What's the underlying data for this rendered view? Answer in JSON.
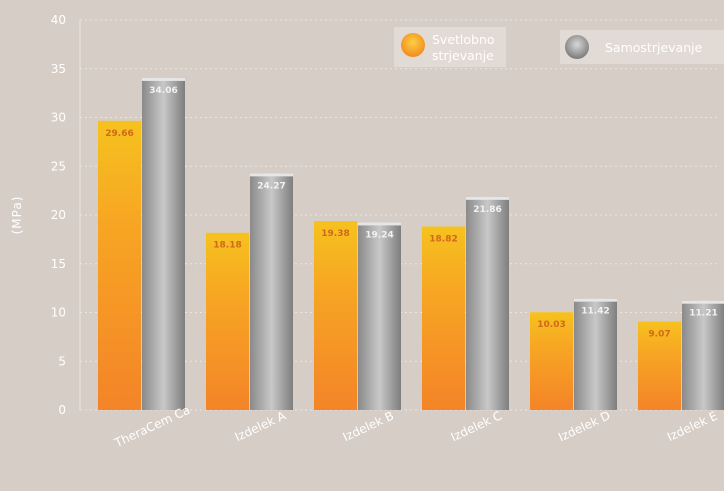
{
  "chart_data": {
    "type": "bar",
    "title": "",
    "xlabel": "",
    "ylabel": "(MPa)",
    "ylim": [
      0,
      40
    ],
    "yticks": [
      "0",
      "5",
      "10",
      "15",
      "20",
      "25",
      "30",
      "35",
      "40"
    ],
    "grid": true,
    "legend_position": "top-right",
    "categories": [
      "TheraCem Ca",
      "Izdelek A",
      "Izdelek B",
      "Izdelek C",
      "Izdelek D",
      "Izdelek E"
    ],
    "series": [
      {
        "name": "Svetlobno strjevanje",
        "legend_lines": [
          "Svetlobno",
          "strjevanje"
        ],
        "color": "#f59a22",
        "values": [
          29.66,
          18.18,
          19.38,
          18.82,
          10.03,
          9.07
        ],
        "labels": [
          "29.66",
          "18.18",
          "19.38",
          "18.82",
          "10.03",
          "9.07"
        ]
      },
      {
        "name": "Samostrjevanje",
        "legend_lines": [
          "Samostrjevanje"
        ],
        "color": "#8d8d8d",
        "values": [
          34.06,
          24.27,
          19.24,
          21.86,
          11.42,
          11.21
        ],
        "labels": [
          "34.06",
          "24.27",
          "19.24",
          "21.86",
          "11.42",
          "11.21"
        ]
      }
    ]
  }
}
